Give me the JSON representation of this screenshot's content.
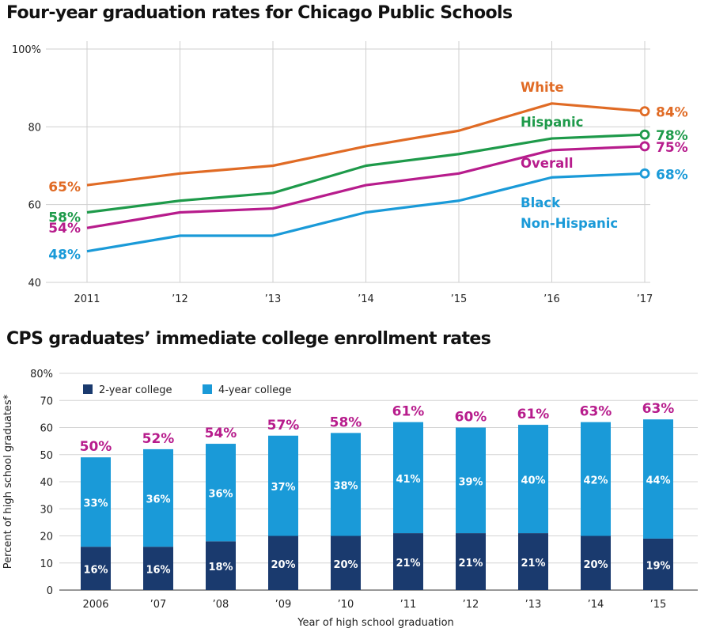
{
  "chart_data": [
    {
      "type": "line",
      "title": "Four-year graduation rates for Chicago Public Schools",
      "xlabel": "",
      "ylabel": "",
      "categories": [
        "2011",
        "’12",
        "’13",
        "’14",
        "’15",
        "’16",
        "’17"
      ],
      "ylim": [
        40,
        100
      ],
      "yticks": [
        40,
        60,
        80,
        100
      ],
      "ytick_labels": [
        "40",
        "60",
        "80",
        "100%"
      ],
      "grid": true,
      "series": [
        {
          "name": "White",
          "color": "#e06b25",
          "values": [
            65,
            68,
            70,
            75,
            79,
            86,
            84
          ],
          "start_label": "65%",
          "end_label": "84%"
        },
        {
          "name": "Hispanic",
          "color": "#1e9a4a",
          "values": [
            58,
            61,
            63,
            70,
            73,
            77,
            78
          ],
          "start_label": "58%",
          "end_label": "78%"
        },
        {
          "name": "Overall",
          "color": "#b71c8c",
          "values": [
            54,
            58,
            59,
            65,
            68,
            74,
            75
          ],
          "start_label": "54%",
          "end_label": "75%"
        },
        {
          "name": "Black Non-Hispanic",
          "name_lines": [
            "Black",
            "Non-Hispanic"
          ],
          "color": "#1a9ad8",
          "values": [
            48,
            52,
            52,
            58,
            61,
            67,
            68
          ],
          "start_label": "48%",
          "end_label": "68%"
        }
      ]
    },
    {
      "type": "bar",
      "stacked": true,
      "title": "CPS graduates’ immediate college enrollment rates",
      "xlabel": "Year of high school graduation",
      "ylabel": "Percent of high school graduates*",
      "categories": [
        "2006",
        "’07",
        "’08",
        "’09",
        "’10",
        "’11",
        "’12",
        "’13",
        "’14",
        "’15"
      ],
      "ylim": [
        0,
        80
      ],
      "yticks": [
        0,
        10,
        20,
        30,
        40,
        50,
        60,
        70,
        80
      ],
      "ytick_labels": [
        "0",
        "10",
        "20",
        "30",
        "40",
        "50",
        "60",
        "70",
        "80%"
      ],
      "grid": true,
      "legend_position": "top-left",
      "series": [
        {
          "name": "2-year college",
          "color": "#1a3a6e",
          "values": [
            16,
            16,
            18,
            20,
            20,
            21,
            21,
            21,
            20,
            19
          ]
        },
        {
          "name": "4-year college",
          "color": "#1a9ad8",
          "values": [
            33,
            36,
            36,
            37,
            38,
            41,
            39,
            40,
            42,
            44
          ]
        }
      ],
      "totals": {
        "color": "#b71c8c",
        "labels": [
          "50%",
          "52%",
          "54%",
          "57%",
          "58%",
          "61%",
          "60%",
          "61%",
          "63%",
          "63%"
        ]
      }
    }
  ]
}
